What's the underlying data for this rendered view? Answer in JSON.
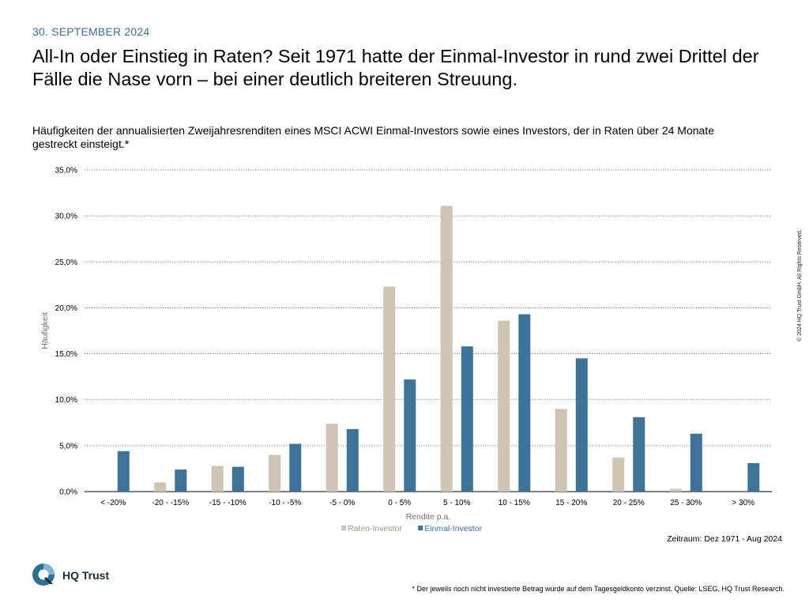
{
  "header": {
    "date": "30. SEPTEMBER 2024",
    "headline": "All-In oder Einstieg in Raten? Seit 1971 hatte der Einmal-Investor in rund zwei Drittel der Fälle die Nase vorn – bei einer deutlich breiteren Streuung."
  },
  "chart_data": {
    "type": "bar",
    "title": "Häufigkeiten der annualisierten Zweijahresrenditen eines MSCI ACWI Einmal-Investors sowie eines Investors, der in Raten über 24 Monate gestreckt einsteigt.*",
    "xlabel": "Rendite p.a.",
    "ylabel": "Häufigkeit",
    "categories": [
      "< -20%",
      "-20 - -15%",
      "-15 - -10%",
      "-10 - -5%",
      "-5 - 0%",
      "0 - 5%",
      "5 - 10%",
      "10 - 15%",
      "15 - 20%",
      "20 - 25%",
      "25 - 30%",
      "> 30%"
    ],
    "series": [
      {
        "name": "Raten-Investor",
        "color": "#d0c4b5",
        "values": [
          0.0,
          1.0,
          2.8,
          4.0,
          7.4,
          22.3,
          31.1,
          18.6,
          9.0,
          3.7,
          0.3,
          0.0
        ]
      },
      {
        "name": "Einmal-Investor",
        "color": "#3d7399",
        "values": [
          4.4,
          2.4,
          2.7,
          5.2,
          6.8,
          12.2,
          15.8,
          19.3,
          14.5,
          8.1,
          6.3,
          3.1
        ]
      }
    ],
    "ylim": [
      0,
      35
    ],
    "yticks": [
      "0,0%",
      "5,0%",
      "10,0%",
      "15,0%",
      "20,0%",
      "25,0%",
      "30,0%",
      "35,0%"
    ],
    "grid": "dotted-horizontal",
    "legend": "bottom-center"
  },
  "notes": {
    "period": "Zeitraum: Dez 1971 - Aug 2024",
    "footnote": "* Der jeweils noch nicht investierte Betrag wurde auf dem Tagesgeldkonto verzinst. Quelle: LSEG, HQ Trust Research.",
    "copyright": "© 2024 HQ Trust GmbH. All Rights Reserved."
  },
  "brand": {
    "name": "HQ Trust",
    "logo_icon": "hq-trust-logo-icon",
    "accent": "#3a7197"
  }
}
